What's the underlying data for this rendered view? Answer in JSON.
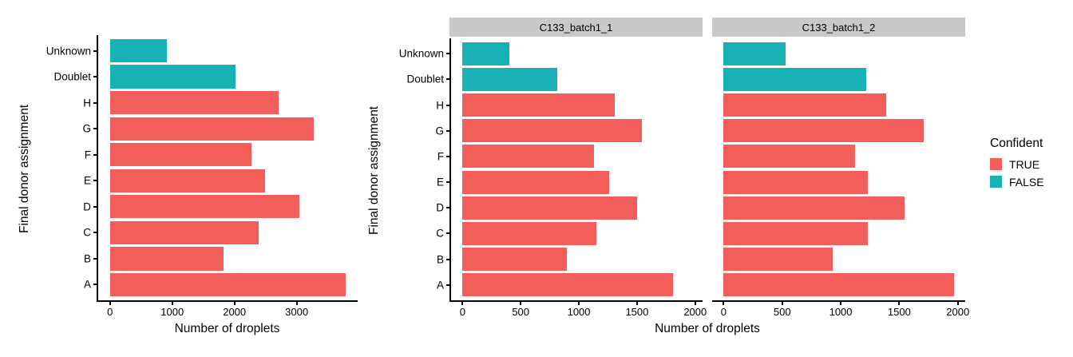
{
  "palette": {
    "confident_true": "#F25E5C",
    "confident_false": "#19B2B4",
    "facet_strip_bg": "#C9C9C9",
    "axis": "#000000",
    "text": "#000000",
    "background": "#FFFFFF"
  },
  "legend": {
    "title": "Confident",
    "items": [
      {
        "label": "TRUE",
        "confident": true
      },
      {
        "label": "FALSE",
        "confident": false
      }
    ]
  },
  "chart_data": [
    {
      "type": "bar",
      "orientation": "horizontal",
      "title": "",
      "xlabel": "Number of droplets",
      "ylabel": "Final donor assignment",
      "x_ticks": [
        0,
        1000,
        2000,
        3000
      ],
      "xlim": [
        0,
        4000
      ],
      "grid": false,
      "legend_position": "none",
      "categories_top_to_bottom": [
        "Unknown",
        "Doublet",
        "H",
        "G",
        "F",
        "E",
        "D",
        "C",
        "B",
        "A"
      ],
      "confident_top_to_bottom": [
        false,
        false,
        true,
        true,
        true,
        true,
        true,
        true,
        true,
        true
      ],
      "values_top_to_bottom": [
        920,
        2020,
        2710,
        3270,
        2270,
        2490,
        3040,
        2390,
        1820,
        3790
      ]
    },
    {
      "type": "bar",
      "orientation": "horizontal",
      "title": "",
      "xlabel": "Number of droplets",
      "ylabel": "Final donor assignment",
      "x_ticks": [
        0,
        500,
        1000,
        1500,
        2000
      ],
      "xlim": [
        0,
        2050
      ],
      "grid": false,
      "legend_position": "right",
      "categories_top_to_bottom": [
        "Unknown",
        "Doublet",
        "H",
        "G",
        "F",
        "E",
        "D",
        "C",
        "B",
        "A"
      ],
      "confident_top_to_bottom": [
        false,
        false,
        true,
        true,
        true,
        true,
        true,
        true,
        true,
        true
      ],
      "facets": [
        {
          "label": "C133_batch1_1",
          "values_top_to_bottom": [
            400,
            815,
            1310,
            1540,
            1130,
            1260,
            1500,
            1150,
            895,
            1810
          ]
        },
        {
          "label": "C133_batch1_2",
          "values_top_to_bottom": [
            530,
            1215,
            1390,
            1710,
            1125,
            1230,
            1545,
            1230,
            930,
            1965
          ]
        }
      ]
    }
  ]
}
